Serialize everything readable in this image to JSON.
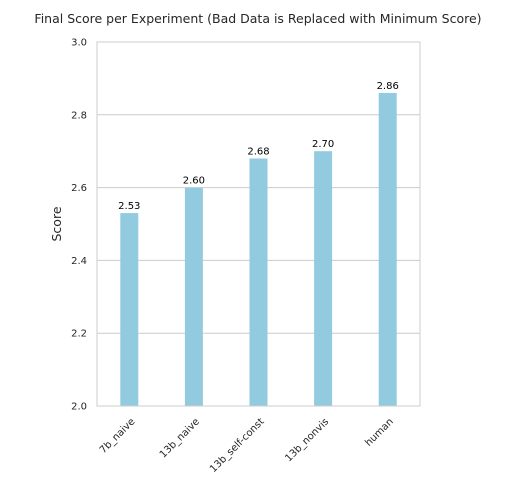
{
  "chart_data": {
    "type": "bar",
    "title": "Final Score per Experiment (Bad Data is Replaced with Minimum Score)",
    "xlabel": "",
    "ylabel": "Score",
    "categories": [
      "7b_naive",
      "13b_naive",
      "13b_self-const",
      "13b_nonvis",
      "human"
    ],
    "values": [
      2.53,
      2.6,
      2.68,
      2.7,
      2.86
    ],
    "value_labels": [
      "2.53",
      "2.60",
      "2.68",
      "2.70",
      "2.86"
    ],
    "ylim": [
      2.0,
      3.0
    ],
    "yticks": [
      2.0,
      2.2,
      2.4,
      2.6,
      2.8,
      3.0
    ],
    "ytick_labels": [
      "2.0",
      "2.2",
      "2.4",
      "2.6",
      "2.8",
      "3.0"
    ],
    "grid": "horizontal",
    "bar_color": "#92cbe0",
    "grid_color": "#cccccc",
    "spine_color": "#cccccc"
  }
}
